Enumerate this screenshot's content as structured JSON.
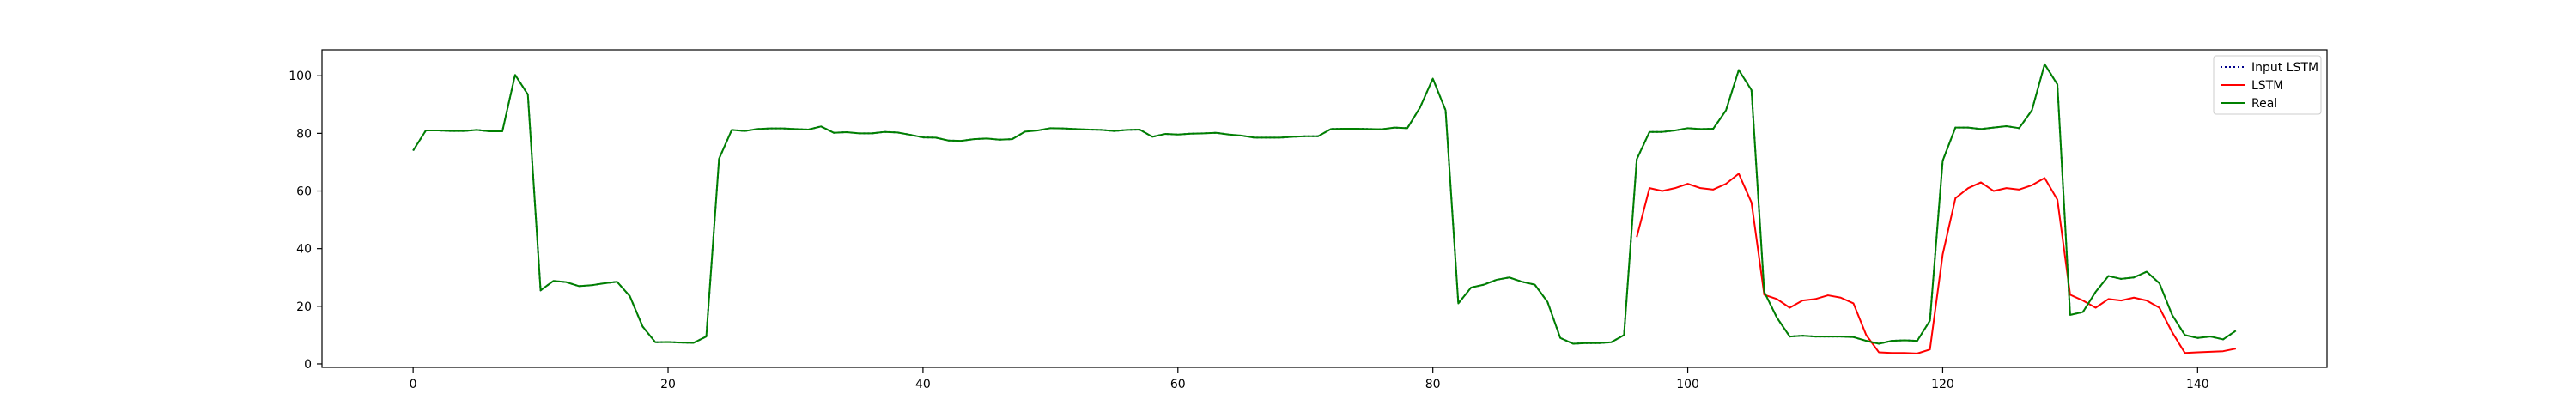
{
  "chart_data": {
    "type": "line",
    "title": "",
    "xlabel": "",
    "ylabel": "",
    "xlim": [
      -7.15,
      150.15
    ],
    "ylim": [
      -1.2,
      109.0
    ],
    "xticks": [
      0,
      20,
      40,
      60,
      80,
      100,
      120,
      140
    ],
    "yticks": [
      0,
      20,
      40,
      60,
      80,
      100
    ],
    "grid": false,
    "legend_position": "top-right",
    "series": [
      {
        "name": "Input LSTM",
        "color": "#00008b",
        "style": "dotted",
        "x_start": 0,
        "values": [
          74,
          81,
          81,
          80.8,
          80.8,
          81.2,
          80.7,
          80.7,
          100.3,
          93.5,
          25.5,
          28.8,
          28.4,
          27,
          27.3,
          28,
          28.5,
          23.5,
          13,
          7.5,
          7.6,
          7.4,
          7.3,
          9.5,
          71.2,
          81.2,
          80.8,
          81.5,
          81.7,
          81.7,
          81.5,
          81.3,
          82.4,
          80.2,
          80.4,
          80,
          80,
          80.5,
          80.3,
          79.5,
          78.6,
          78.5,
          77.5,
          77.4,
          78,
          78.2,
          77.8,
          78,
          80.6,
          81,
          81.8,
          81.7,
          81.5,
          81.3,
          81.2,
          80.8,
          81.2,
          81.3,
          78.8,
          79.8,
          79.6,
          79.9,
          80,
          80.2,
          79.6,
          79.2,
          78.5,
          78.5,
          78.5,
          78.8,
          79,
          79,
          81.5,
          81.6,
          81.6,
          81.5,
          81.4,
          82,
          81.8,
          89,
          99,
          88,
          21,
          26.5,
          27.5,
          29.2,
          30,
          28.5,
          27.5,
          21.5,
          9,
          7,
          7.2,
          7.2,
          7.5,
          10,
          71,
          80.5,
          80.5,
          81,
          81.8,
          81.5,
          81.6,
          88,
          102,
          95,
          25,
          16,
          9.5,
          9.8,
          9.5,
          9.5,
          9.5,
          9.3,
          8,
          7,
          8,
          8.2,
          8,
          15,
          70.5,
          82,
          82,
          81.5,
          82,
          82.5,
          81.8,
          88,
          104,
          97,
          17,
          18,
          25,
          30.5,
          29.5,
          30,
          32,
          28,
          17,
          10,
          9,
          9.5,
          8.5,
          11.5
        ]
      },
      {
        "name": "LSTM",
        "color": "#ff0000",
        "style": "solid",
        "x_start": 96,
        "values": [
          44,
          61,
          60,
          61,
          62.5,
          61,
          60.5,
          62.5,
          66,
          56,
          24,
          22.5,
          19.5,
          22,
          22.5,
          23.8,
          23,
          21,
          10,
          4,
          3.8,
          3.8,
          3.6,
          5,
          38,
          57.5,
          61,
          63,
          60,
          61,
          60.5,
          62,
          64.5,
          57,
          24,
          22,
          19.5,
          22.5,
          22,
          23,
          22,
          19.5,
          11,
          3.8,
          4,
          4.2,
          4.4,
          5.3
        ]
      },
      {
        "name": "Real",
        "color": "#008000",
        "style": "solid",
        "x_start": 0,
        "values": [
          74,
          81,
          81,
          80.8,
          80.8,
          81.2,
          80.7,
          80.7,
          100.3,
          93.5,
          25.5,
          28.8,
          28.4,
          27,
          27.3,
          28,
          28.5,
          23.5,
          13,
          7.5,
          7.6,
          7.4,
          7.3,
          9.5,
          71.2,
          81.2,
          80.8,
          81.5,
          81.7,
          81.7,
          81.5,
          81.3,
          82.4,
          80.2,
          80.4,
          80,
          80,
          80.5,
          80.3,
          79.5,
          78.6,
          78.5,
          77.5,
          77.4,
          78,
          78.2,
          77.8,
          78,
          80.6,
          81,
          81.8,
          81.7,
          81.5,
          81.3,
          81.2,
          80.8,
          81.2,
          81.3,
          78.8,
          79.8,
          79.6,
          79.9,
          80,
          80.2,
          79.6,
          79.2,
          78.5,
          78.5,
          78.5,
          78.8,
          79,
          79,
          81.5,
          81.6,
          81.6,
          81.5,
          81.4,
          82,
          81.8,
          89,
          99,
          88,
          21,
          26.5,
          27.5,
          29.2,
          30,
          28.5,
          27.5,
          21.5,
          9,
          7,
          7.2,
          7.2,
          7.5,
          10,
          71,
          80.5,
          80.5,
          81,
          81.8,
          81.5,
          81.6,
          88,
          102,
          95,
          25,
          16,
          9.5,
          9.8,
          9.5,
          9.5,
          9.5,
          9.3,
          8,
          7,
          8,
          8.2,
          8,
          15,
          70.5,
          82,
          82,
          81.5,
          82,
          82.5,
          81.8,
          88,
          104,
          97,
          17,
          18,
          25,
          30.5,
          29.5,
          30,
          32,
          28,
          17,
          10,
          9,
          9.5,
          8.5,
          11.5
        ]
      }
    ]
  }
}
